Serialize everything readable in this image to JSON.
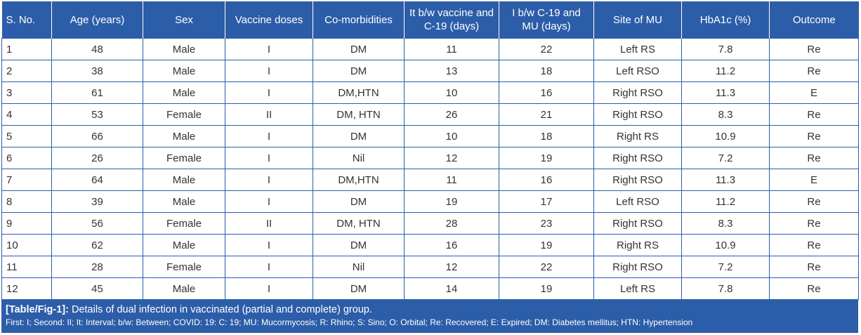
{
  "table": {
    "header": [
      "S. No.",
      "Age (years)",
      "Sex",
      "Vaccine doses",
      "Co-morbidities",
      "It b/w vaccine and C-19 (days)",
      "I b/w C-19 and MU (days)",
      "Site of MU",
      "HbA1c (%)",
      "Outcome"
    ],
    "rows": [
      [
        "1",
        "48",
        "Male",
        "I",
        "DM",
        "11",
        "22",
        "Left RS",
        "7.8",
        "Re"
      ],
      [
        "2",
        "38",
        "Male",
        "I",
        "DM",
        "13",
        "18",
        "Left RSO",
        "11.2",
        "Re"
      ],
      [
        "3",
        "61",
        "Male",
        "I",
        "DM,HTN",
        "10",
        "16",
        "Right RSO",
        "11.3",
        "E"
      ],
      [
        "4",
        "53",
        "Female",
        "II",
        "DM, HTN",
        "26",
        "21",
        "Right RSO",
        "8.3",
        "Re"
      ],
      [
        "5",
        "66",
        "Male",
        "I",
        "DM",
        "10",
        "18",
        "Right RS",
        "10.9",
        "Re"
      ],
      [
        "6",
        "26",
        "Female",
        "I",
        "Nil",
        "12",
        "19",
        "Right RSO",
        "7.2",
        "Re"
      ],
      [
        "7",
        "64",
        "Male",
        "I",
        "DM,HTN",
        "11",
        "16",
        "Right RSO",
        "11.3",
        "E"
      ],
      [
        "8",
        "39",
        "Male",
        "I",
        "DM",
        "19",
        "17",
        "Left RSO",
        "11.2",
        "Re"
      ],
      [
        "9",
        "56",
        "Female",
        "II",
        "DM, HTN",
        "28",
        "23",
        "Right RSO",
        "8.3",
        "Re"
      ],
      [
        "10",
        "62",
        "Male",
        "I",
        "DM",
        "16",
        "19",
        "Right RS",
        "10.9",
        "Re"
      ],
      [
        "11",
        "28",
        "Female",
        "I",
        "Nil",
        "12",
        "22",
        "Right RSO",
        "7.2",
        "Re"
      ],
      [
        "12",
        "45",
        "Male",
        "I",
        "DM",
        "14",
        "19",
        "Left RS",
        "7.8",
        "Re"
      ]
    ]
  },
  "caption": {
    "label": "[Table/Fig-1]:",
    "text": " Details of dual infection in vaccinated (partial and complete) group.",
    "footnote": "First: I; Second: II; It: Interval; b/w: Between; COVID: 19: C: 19; MU: Mucormycosis; R: Rhino; S: Sino; O: Orbital; Re: Recovered; E: Expired; DM: Diabetes mellitus; HTN: Hypertension"
  }
}
